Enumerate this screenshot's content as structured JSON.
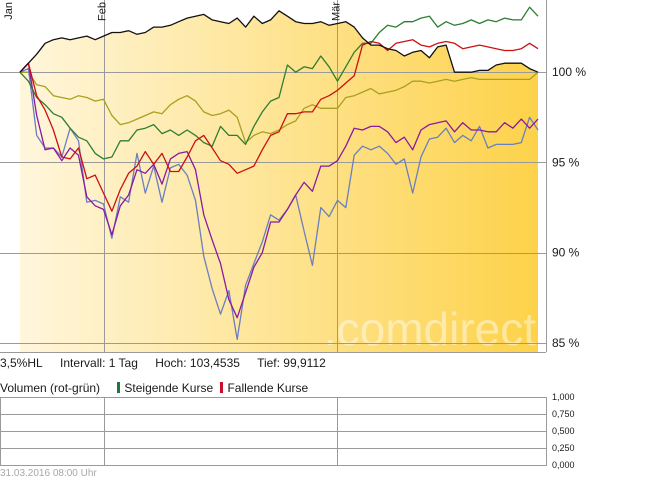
{
  "header_labels": [
    "Jan",
    "Feb",
    "Mär"
  ],
  "stats": {
    "range": "3,5%HL",
    "interval": "Intervall: 1 Tag",
    "high": "Hoch: 103,4535",
    "low": "Tief: 99,9112"
  },
  "volume_legend": {
    "title": "Volumen (rot-grün)",
    "rising": "Steigende Kurse",
    "falling": "Fallende Kurse",
    "rising_color": "#1a7a3a",
    "falling_color": "#c8102e"
  },
  "watermark": ".comdirect",
  "timestamp": "31.03.2016 08:00 Uhr",
  "colors": {
    "area_fill_light": "#fff6dc",
    "area_fill_dark": "#fdd24a",
    "black": "#111111",
    "green": "#2e7d32",
    "red": "#cc1111",
    "olive": "#a8a020",
    "blue": "#6a7fc0",
    "purple": "#8a1aa0"
  },
  "chart_data": [
    {
      "type": "line",
      "x_range": [
        0,
        62
      ],
      "ylim": [
        84.5,
        104
      ],
      "y_axis_ticks": [
        85,
        90,
        95,
        100
      ],
      "y_tick_labels": [
        "85 %",
        "90 %",
        "95 %",
        "100 %"
      ],
      "x_ticks": [
        10,
        38
      ],
      "grid": true,
      "series": [
        {
          "key": "black",
          "values": [
            100,
            100.5,
            101,
            101.6,
            101.8,
            101.9,
            101.8,
            101.9,
            102,
            101.8,
            102,
            102.2,
            102.2,
            102.3,
            102.1,
            102.2,
            102.5,
            102.5,
            102.6,
            102.8,
            103,
            103.1,
            103.2,
            102.9,
            102.8,
            102.7,
            103,
            102.5,
            103.1,
            102.7,
            102.9,
            103.4,
            103.1,
            102.8,
            102.7,
            102.7,
            102.8,
            102.6,
            102.7,
            102.8,
            102.5,
            101.9,
            101.5,
            101.5,
            101.3,
            101.2,
            100.9,
            101.1,
            101.2,
            100.8,
            101.4,
            101.5,
            100,
            100,
            100,
            100.1,
            100.1,
            100.4,
            100.5,
            100.5,
            100.5,
            100.2,
            100
          ]
        },
        {
          "key": "green",
          "values": [
            100,
            99.5,
            98.6,
            98.2,
            97.7,
            97.5,
            96.9,
            96.4,
            96.2,
            95.5,
            95.2,
            95.3,
            96.2,
            96.2,
            96.8,
            96.9,
            97.1,
            96.6,
            96.8,
            96.5,
            96.8,
            96.5,
            96.1,
            95.9,
            97,
            96.5,
            96.5,
            96,
            97,
            97.8,
            98.4,
            98.6,
            100.4,
            100,
            100.3,
            100.2,
            100.9,
            100.3,
            99.5,
            100.3,
            101.1,
            101.6,
            101.6,
            102.2,
            102.6,
            102.5,
            102.8,
            102.8,
            103,
            103.1,
            102.5,
            102.8,
            102.6,
            102.7,
            102.9,
            102.7,
            102.9,
            102.8,
            103,
            102.9,
            102.9,
            103.6,
            103.1
          ]
        },
        {
          "key": "red",
          "values": [
            100,
            100.5,
            98.7,
            97.9,
            96.8,
            95.3,
            95.2,
            95.8,
            94.1,
            94.3,
            93.3,
            92.3,
            93.5,
            94.4,
            94.8,
            95.6,
            94.9,
            95.5,
            94.5,
            94.5,
            95.3,
            96.2,
            96.5,
            95.8,
            95.1,
            94.9,
            94.4,
            94.6,
            94.8,
            95.7,
            96.5,
            96.7,
            97.7,
            97.7,
            97.8,
            97.8,
            98.5,
            98.7,
            99,
            99.4,
            99.8,
            101.5,
            101.7,
            101.6,
            101.2,
            101.6,
            101.7,
            101.8,
            101.5,
            101.4,
            101.6,
            101.7,
            101.6,
            101.3,
            101.4,
            101.5,
            101.4,
            101.3,
            101.2,
            101.2,
            101.3,
            101.6,
            101.3
          ]
        },
        {
          "key": "olive",
          "values": [
            100,
            100,
            99.3,
            99.2,
            98.7,
            98.6,
            98.5,
            98.7,
            98.6,
            98.4,
            98.5,
            97.6,
            97.1,
            97.2,
            97.4,
            97.6,
            97.8,
            97.7,
            98.2,
            98.5,
            98.7,
            98.4,
            97.8,
            97.6,
            97.7,
            97.9,
            97.5,
            96.1,
            96.5,
            96.7,
            96.6,
            96.8,
            97.1,
            97.3,
            98,
            98.2,
            98,
            98,
            98,
            98.6,
            98.7,
            98.9,
            99.1,
            98.8,
            98.9,
            99,
            99.2,
            99.5,
            99.5,
            99.4,
            99.5,
            99.6,
            99.5,
            99.6,
            99.7,
            99.6,
            99.6,
            99.6,
            99.6,
            99.6,
            99.6,
            99.6,
            100
          ]
        },
        {
          "key": "blue",
          "values": [
            100,
            100.2,
            96.5,
            95.8,
            95.8,
            95.3,
            96.9,
            96.2,
            92.8,
            92.9,
            92.7,
            90.8,
            93.1,
            92.8,
            95.5,
            93.3,
            94.8,
            92.8,
            94.7,
            94.9,
            94.3,
            92.9,
            89.8,
            88,
            86.6,
            87.9,
            85.2,
            88.2,
            89.4,
            90.6,
            92.1,
            91.8,
            92.4,
            93.2,
            91.2,
            89.3,
            92.5,
            92,
            92.9,
            92.5,
            95.4,
            95.9,
            95.7,
            95.9,
            95.5,
            94.9,
            95.2,
            93.3,
            95.3,
            96.3,
            96.4,
            96.9,
            96.1,
            96.5,
            96.2,
            97,
            95.8,
            96,
            96,
            96,
            96.1,
            97.5,
            96.8
          ]
        },
        {
          "key": "purple",
          "values": [
            100,
            100.5,
            97.6,
            95.7,
            95.8,
            95.1,
            95.8,
            95.4,
            93.1,
            92.6,
            92.4,
            91,
            92.6,
            93.2,
            94.6,
            94.4,
            94.9,
            93.8,
            95.2,
            95.5,
            95.6,
            94.6,
            92.1,
            90.7,
            89.4,
            87.4,
            86.4,
            87.8,
            89.2,
            90,
            91.7,
            91.7,
            92.4,
            93.2,
            93.9,
            93.4,
            94.8,
            94.8,
            95.1,
            95.9,
            96.9,
            96.8,
            97,
            97,
            96.7,
            96.1,
            96.4,
            95.7,
            96.8,
            97.1,
            97.2,
            97.3,
            96.7,
            97.2,
            96.8,
            96.8,
            96.7,
            96.7,
            97.2,
            96.9,
            97.4,
            96.9,
            97.4
          ]
        }
      ]
    },
    {
      "type": "bar",
      "ylim": [
        0,
        1
      ],
      "y_axis_ticks": [
        0,
        0.25,
        0.5,
        0.75,
        1
      ],
      "y_tick_labels": [
        "0,000",
        "0,250",
        "0,500",
        "0,750",
        "1,000"
      ],
      "series": []
    }
  ]
}
